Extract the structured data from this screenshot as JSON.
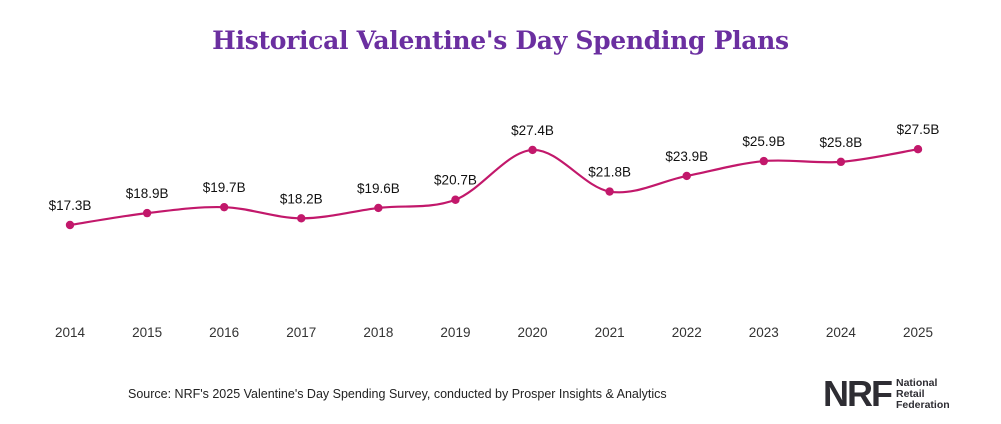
{
  "chart_data": {
    "type": "line",
    "title": "Historical Valentine's Day Spending Plans",
    "categories": [
      "2014",
      "2015",
      "2016",
      "2017",
      "2018",
      "2019",
      "2020",
      "2021",
      "2022",
      "2023",
      "2024",
      "2025"
    ],
    "values": [
      17.3,
      18.9,
      19.7,
      18.2,
      19.6,
      20.7,
      27.4,
      21.8,
      23.9,
      25.9,
      25.8,
      27.5
    ],
    "data_labels": [
      "$17.3B",
      "$18.9B",
      "$19.7B",
      "$18.2B",
      "$19.6B",
      "$20.7B",
      "$27.4B",
      "$21.8B",
      "$23.9B",
      "$25.9B",
      "$25.8B",
      "$27.5B"
    ],
    "line_color": "#c2186b",
    "smooth": true,
    "grid": false,
    "legend": "none"
  },
  "source": "Source: NRF's 2025 Valentine's Day Spending Survey, conducted by Prosper Insights & Analytics",
  "logo": {
    "mark": "NRF",
    "lines": [
      "National",
      "Retail",
      "Federation"
    ]
  }
}
